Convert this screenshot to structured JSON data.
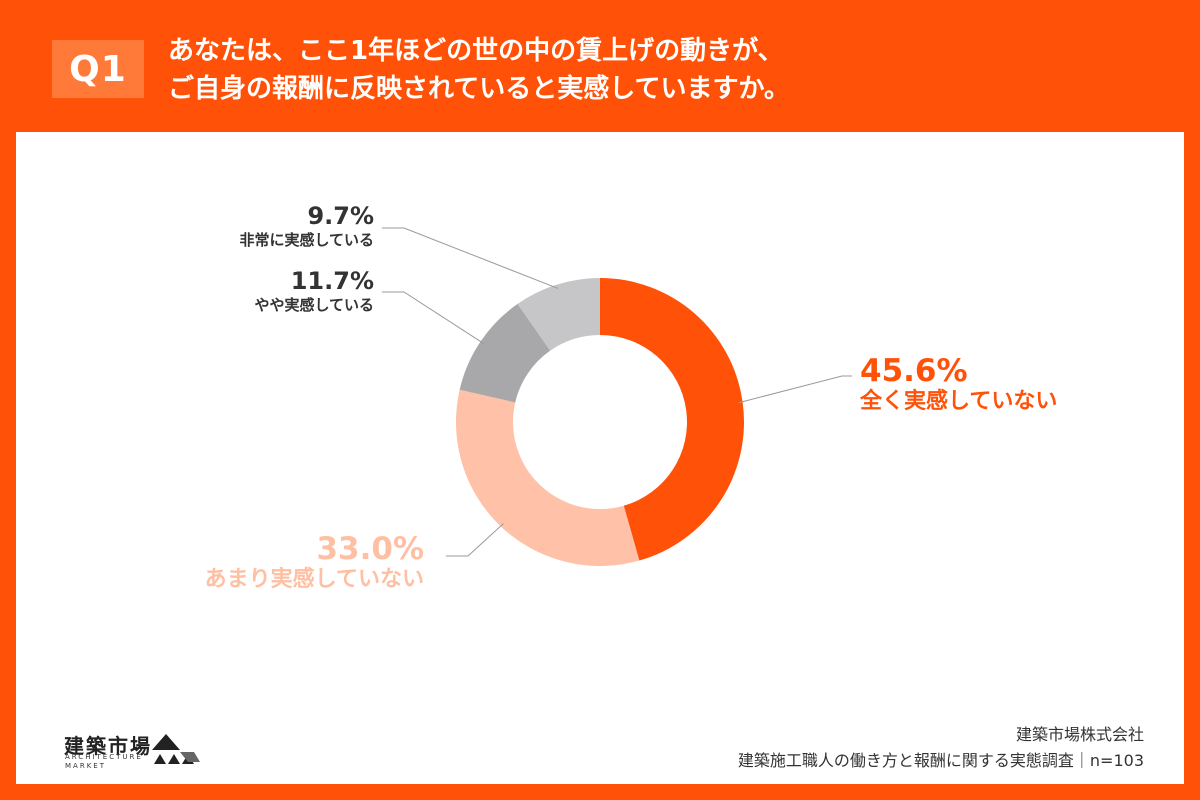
{
  "header": {
    "badge": "Q1",
    "question_line1": "あなたは、ここ1年ほどの世の中の賃上げの動きが、",
    "question_line2": "ご自身の報酬に反映されていると実感していますか。"
  },
  "chart_data": {
    "type": "pie",
    "variant": "donut",
    "title": "",
    "slices": [
      {
        "label": "全く実感していない",
        "value": 45.6,
        "value_label": "45.6%",
        "color": "#ff5208"
      },
      {
        "label": "あまり実感していない",
        "value": 33.0,
        "value_label": "33.0%",
        "color": "#ffc2a8"
      },
      {
        "label": "やや実感している",
        "value": 11.7,
        "value_label": "11.7%",
        "color": "#a8a8ab"
      },
      {
        "label": "非常に実感している",
        "value": 9.7,
        "value_label": "9.7%",
        "color": "#c6c6c9"
      }
    ],
    "start": "12 o'clock",
    "direction": "clockwise",
    "legend": "none"
  },
  "footer": {
    "logo_jp": "建築市場",
    "logo_en_line1": "ARCHITECTURE",
    "logo_en_line2": "MARKET",
    "company": "建築市場株式会社",
    "survey": "建築施工職人の働き方と報酬に関する実態調査｜n=103"
  }
}
